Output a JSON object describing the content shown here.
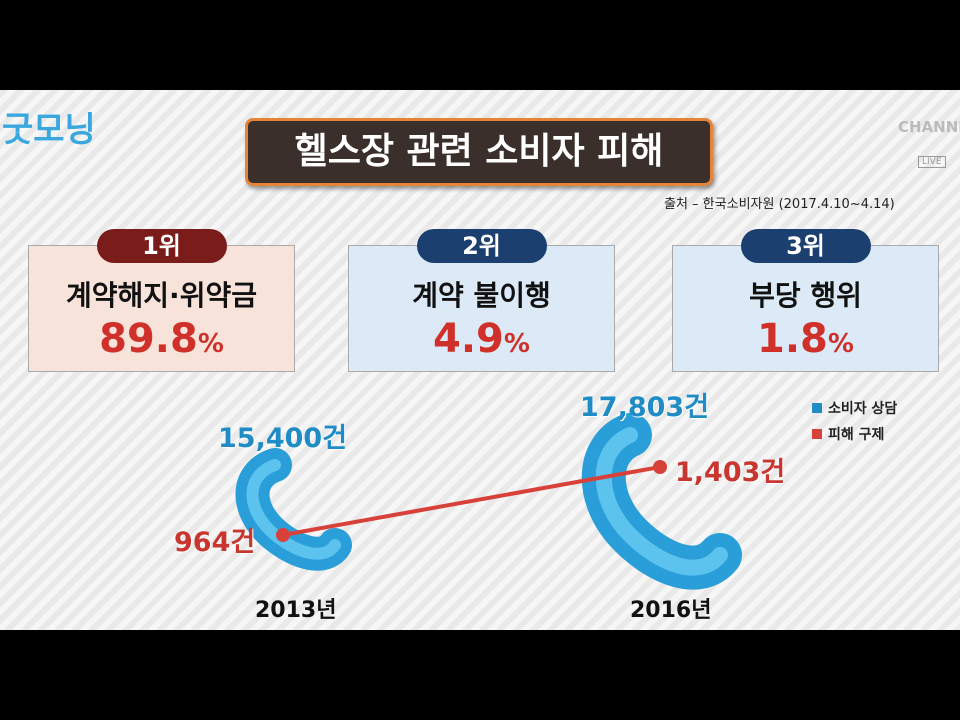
{
  "logo": {
    "main": "굿모닝"
  },
  "channel": {
    "name": "CHANNEL",
    "badge": "LIVE"
  },
  "title": "헬스장 관련 소비자 피해",
  "source": "출처 – 한국소비자원 (2017.4.10~4.14)",
  "rankings": [
    {
      "rank": "1위",
      "label": "계약해지·위약금",
      "value": "89.8",
      "unit": "%"
    },
    {
      "rank": "2위",
      "label": "계약 불이행",
      "value": "4.9",
      "unit": "%"
    },
    {
      "rank": "3위",
      "label": "부당 행위",
      "value": "1.8",
      "unit": "%"
    }
  ],
  "legend": [
    {
      "name": "소비자 상담",
      "color": "#1f8cc6"
    },
    {
      "name": "피해 구제",
      "color": "#d8413a"
    }
  ],
  "years": [
    {
      "year": "2013년",
      "consult": "15,400건",
      "relief": "964건"
    },
    {
      "year": "2016년",
      "consult": "17,803건",
      "relief": "1,403건"
    }
  ]
}
